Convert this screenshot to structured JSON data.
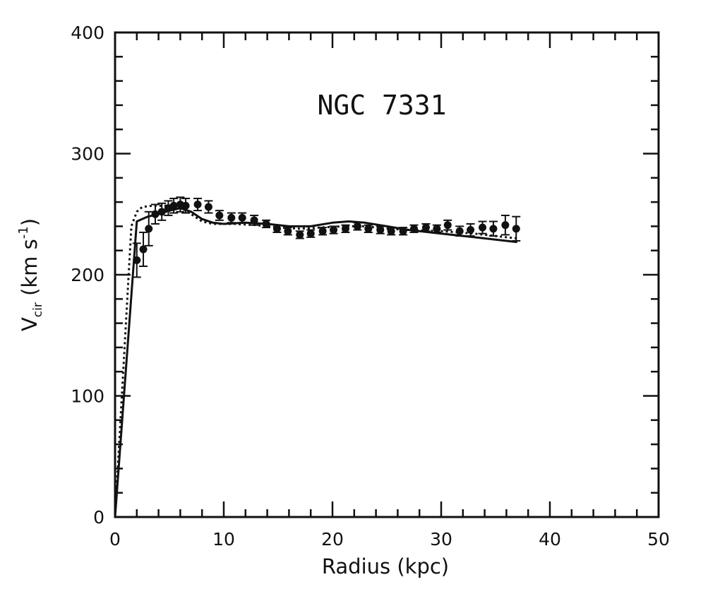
{
  "chart_data": {
    "type": "scatter",
    "annotation": "NGC 7331",
    "xlabel": "Radius (kpc)",
    "ylabel": {
      "main": "V",
      "sub": "cir",
      "units_open": " (km s",
      "units_sup": "-1",
      "units_close": ")"
    },
    "xlim": [
      0,
      50
    ],
    "ylim": [
      0,
      400
    ],
    "x_ticks": [
      0,
      10,
      20,
      30,
      40,
      50
    ],
    "y_ticks": [
      0,
      100,
      200,
      300,
      400
    ],
    "x_tick_labels": [
      "0",
      "10",
      "20",
      "30",
      "40",
      "50"
    ],
    "y_tick_labels": [
      "0",
      "100",
      "200",
      "300",
      "400"
    ],
    "grid": false,
    "legend": "none",
    "colors": {
      "ink": "#111111",
      "background": "#ffffff"
    },
    "series": [
      {
        "style": "points-with-errorbars",
        "points": [
          {
            "x": 2.0,
            "y": 212,
            "err": 14
          },
          {
            "x": 2.6,
            "y": 221,
            "err": 14
          },
          {
            "x": 3.1,
            "y": 238,
            "err": 14
          },
          {
            "x": 3.7,
            "y": 250,
            "err": 8
          },
          {
            "x": 4.3,
            "y": 252,
            "err": 7
          },
          {
            "x": 4.9,
            "y": 255,
            "err": 6
          },
          {
            "x": 5.4,
            "y": 257,
            "err": 6
          },
          {
            "x": 6.0,
            "y": 258,
            "err": 6
          },
          {
            "x": 6.5,
            "y": 257,
            "err": 6
          },
          {
            "x": 7.6,
            "y": 258,
            "err": 5
          },
          {
            "x": 8.6,
            "y": 256,
            "err": 5
          },
          {
            "x": 9.6,
            "y": 249,
            "err": 4
          },
          {
            "x": 10.7,
            "y": 247,
            "err": 4
          },
          {
            "x": 11.7,
            "y": 247,
            "err": 4
          },
          {
            "x": 12.8,
            "y": 245,
            "err": 4
          },
          {
            "x": 13.9,
            "y": 242,
            "err": 3
          },
          {
            "x": 14.9,
            "y": 238,
            "err": 3
          },
          {
            "x": 15.9,
            "y": 236,
            "err": 3
          },
          {
            "x": 17.0,
            "y": 233,
            "err": 3
          },
          {
            "x": 18.0,
            "y": 234,
            "err": 3
          },
          {
            "x": 19.1,
            "y": 236,
            "err": 3
          },
          {
            "x": 20.1,
            "y": 237,
            "err": 3
          },
          {
            "x": 21.2,
            "y": 238,
            "err": 3
          },
          {
            "x": 22.3,
            "y": 240,
            "err": 3
          },
          {
            "x": 23.3,
            "y": 238,
            "err": 3
          },
          {
            "x": 24.4,
            "y": 237,
            "err": 3
          },
          {
            "x": 25.4,
            "y": 236,
            "err": 3
          },
          {
            "x": 26.5,
            "y": 236,
            "err": 3
          },
          {
            "x": 27.5,
            "y": 238,
            "err": 3
          },
          {
            "x": 28.6,
            "y": 239,
            "err": 3
          },
          {
            "x": 29.6,
            "y": 238,
            "err": 3
          },
          {
            "x": 30.6,
            "y": 241,
            "err": 4
          },
          {
            "x": 31.7,
            "y": 236,
            "err": 4
          },
          {
            "x": 32.7,
            "y": 237,
            "err": 5
          },
          {
            "x": 33.8,
            "y": 239,
            "err": 5
          },
          {
            "x": 34.8,
            "y": 238,
            "err": 6
          },
          {
            "x": 35.9,
            "y": 241,
            "err": 8
          },
          {
            "x": 36.9,
            "y": 238,
            "err": 10
          }
        ]
      },
      {
        "style": "solid-line",
        "points": [
          [
            0,
            0
          ],
          [
            2.0,
            244
          ],
          [
            3.0,
            248
          ],
          [
            4.0,
            250
          ],
          [
            5.0,
            253
          ],
          [
            6.0,
            255
          ],
          [
            7.0,
            252
          ],
          [
            8.0,
            246
          ],
          [
            9.0,
            243
          ],
          [
            10.0,
            242
          ],
          [
            12.0,
            243
          ],
          [
            14.0,
            242
          ],
          [
            16.0,
            240
          ],
          [
            18.0,
            240
          ],
          [
            20.0,
            243
          ],
          [
            21.5,
            244
          ],
          [
            23.0,
            243
          ],
          [
            25.0,
            240
          ],
          [
            27.0,
            237
          ],
          [
            30.0,
            234
          ],
          [
            33.0,
            231
          ],
          [
            35.0,
            229
          ],
          [
            37.0,
            227
          ]
        ]
      },
      {
        "style": "dotted-line",
        "points": [
          [
            0,
            0
          ],
          [
            1.5,
            240
          ],
          [
            2.0,
            252
          ],
          [
            2.5,
            256
          ],
          [
            3.5,
            257
          ],
          [
            5.0,
            257
          ],
          [
            6.0,
            256
          ],
          [
            7.0,
            250
          ],
          [
            8.0,
            244
          ],
          [
            9.0,
            242
          ],
          [
            11.0,
            242
          ],
          [
            13.0,
            241
          ],
          [
            15.0,
            239
          ],
          [
            17.0,
            238
          ],
          [
            19.0,
            239
          ],
          [
            21.0,
            240
          ],
          [
            23.0,
            240
          ],
          [
            25.0,
            238
          ],
          [
            27.0,
            237
          ],
          [
            30.0,
            236
          ],
          [
            33.0,
            234
          ],
          [
            35.0,
            232
          ],
          [
            37.0,
            230
          ]
        ]
      }
    ]
  }
}
